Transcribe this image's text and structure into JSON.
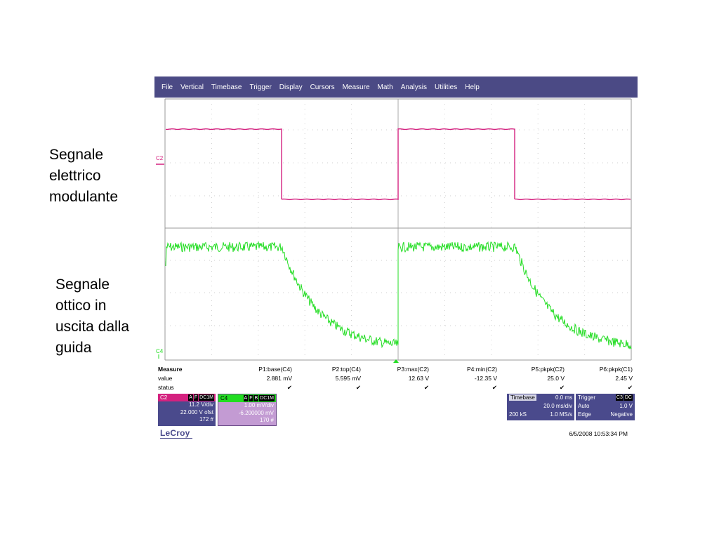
{
  "slide": {
    "label_electrical": [
      "Segnale",
      "elettrico",
      "modulante"
    ],
    "label_optical": [
      "Segnale",
      "ottico in",
      "uscita dalla",
      "guida"
    ]
  },
  "menu": [
    "File",
    "Vertical",
    "Timebase",
    "Trigger",
    "Display",
    "Cursors",
    "Measure",
    "Math",
    "Analysis",
    "Utilities",
    "Help"
  ],
  "grid": {
    "ch2_marker": "C2",
    "ch4_marker": "C4"
  },
  "measure": {
    "headers": [
      "Measure",
      "P1:base(C4)",
      "P2:top(C4)",
      "P3:max(C2)",
      "P4:min(C2)",
      "P5:pkpk(C2)",
      "P6:pkpk(C1)"
    ],
    "values": [
      "value",
      "2.881 mV",
      "5.595 mV",
      "12.63 V",
      "-12.35 V",
      "25.0 V",
      "2.45 V"
    ],
    "status_label": "status",
    "status_mark": "✔"
  },
  "channels": {
    "c2": {
      "name": "C2",
      "flags": [
        "A",
        "F",
        "DC1M"
      ],
      "vdiv": "11.2 V/div",
      "offset": "22.000 V ofst",
      "count": "172 #"
    },
    "c4": {
      "name": "C4",
      "flags": [
        "A",
        "F",
        "B",
        "DC1M"
      ],
      "vdiv": "1.00 mV/div",
      "offset": "-6.200000 mV",
      "count": "170 #"
    }
  },
  "timebase": {
    "label": "Timebase",
    "delay": "0.0 ms",
    "tdiv": "20.0 ms/div",
    "samples": "200 kS",
    "rate": "1.0 MS/s"
  },
  "trigger": {
    "label": "Trigger",
    "flags": [
      "C3",
      "DC"
    ],
    "mode": "Auto",
    "level": "1.0 V",
    "type": "Edge",
    "slope": "Negative"
  },
  "footer": {
    "brand": "LeCroy",
    "datetime": "6/5/2008 10:53:34 PM"
  },
  "colors": {
    "menu_bg": "#4b4a85",
    "ch2_trace": "#d4217f",
    "ch4_trace": "#22dd22",
    "box_bg": "#4a4a8c"
  }
}
